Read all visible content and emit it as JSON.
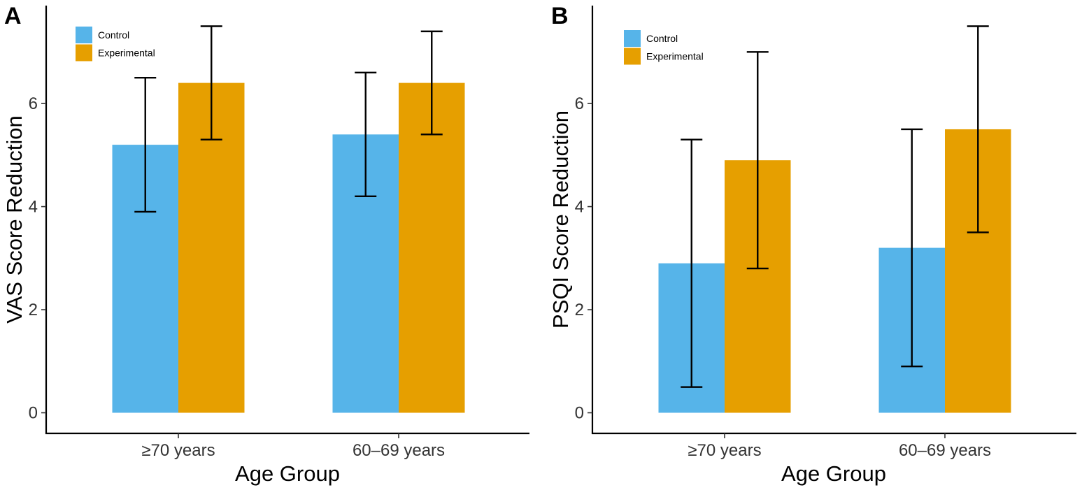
{
  "colors": {
    "control": "#56B4E9",
    "experimental": "#E69F00",
    "error_bar": "#000000"
  },
  "chart_data": [
    {
      "panel": "A",
      "type": "bar",
      "xlabel": "Age Group",
      "ylabel": "VAS Score Reduction",
      "categories": [
        "≥70 years",
        "60–69 years"
      ],
      "ylim": [
        -0.4,
        7.9
      ],
      "yticks": [
        0,
        2,
        4,
        6
      ],
      "legend": {
        "position": "top-left",
        "entries": [
          "Control",
          "Experimental"
        ]
      },
      "series": [
        {
          "name": "Control",
          "color_key": "control",
          "values": [
            5.2,
            5.4
          ],
          "err_low": [
            3.9,
            4.2
          ],
          "err_high": [
            6.5,
            6.6
          ]
        },
        {
          "name": "Experimental",
          "color_key": "experimental",
          "values": [
            6.4,
            6.4
          ],
          "err_low": [
            5.3,
            5.4
          ],
          "err_high": [
            7.5,
            7.4
          ]
        }
      ]
    },
    {
      "panel": "B",
      "type": "bar",
      "xlabel": "Age Group",
      "ylabel": "PSQI Score Reduction",
      "categories": [
        "≥70 years",
        "60–69 years"
      ],
      "ylim": [
        -0.4,
        7.9
      ],
      "yticks": [
        0,
        2,
        4,
        6
      ],
      "legend": {
        "position": "top-left",
        "entries": [
          "Control",
          "Experimental"
        ]
      },
      "series": [
        {
          "name": "Control",
          "color_key": "control",
          "values": [
            2.9,
            3.2
          ],
          "err_low": [
            0.5,
            0.9
          ],
          "err_high": [
            5.3,
            5.5
          ]
        },
        {
          "name": "Experimental",
          "color_key": "experimental",
          "values": [
            4.9,
            5.5
          ],
          "err_low": [
            2.8,
            3.5
          ],
          "err_high": [
            7.0,
            7.5
          ]
        }
      ]
    }
  ]
}
